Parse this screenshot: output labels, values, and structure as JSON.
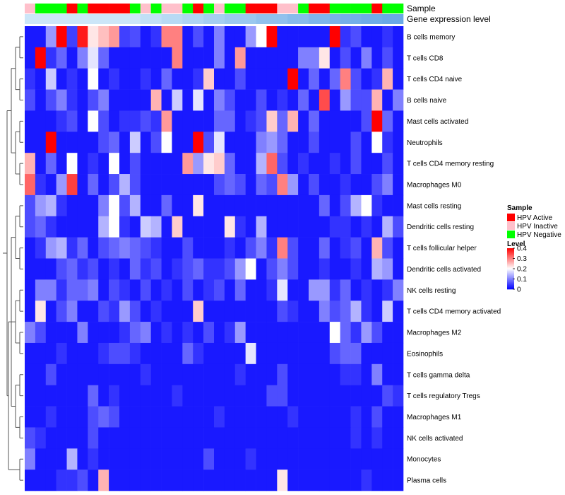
{
  "chart_data": {
    "type": "heatmap",
    "annotation_tracks": [
      "Sample",
      "Gene expression level"
    ],
    "rows": [
      "B cells memory",
      "T cells CD8",
      "T cells CD4 naive",
      "B cells naive",
      "Mast cells activated",
      "Neutrophils",
      "T cells CD4 memory resting",
      "Macrophages M0",
      "Mast cells resting",
      "Dendritic cells resting",
      "T cells follicular helper",
      "Dendritic cells activated",
      "NK cells resting",
      "T cells CD4 memory activated",
      "Macrophages M2",
      "Eosinophils",
      "T cells gamma delta",
      "T cells regulatory  Tregs",
      "Macrophages M1",
      "NK cells activated",
      "Monocytes",
      "Plasma cells"
    ],
    "sample_groups": [
      "Inactive",
      "Negative",
      "Negative",
      "Negative",
      "Active",
      "Negative",
      "Active",
      "Active",
      "Active",
      "Active",
      "Negative",
      "Inactive",
      "Negative",
      "Inactive",
      "Inactive",
      "Negative",
      "Active",
      "Negative",
      "Inactive",
      "Negative",
      "Negative",
      "Active",
      "Active",
      "Active",
      "Inactive",
      "Inactive",
      "Negative",
      "Active",
      "Active",
      "Negative",
      "Negative",
      "Negative",
      "Negative",
      "Active",
      "Negative",
      "Negative"
    ],
    "gene_expression_level": [
      0,
      0,
      0,
      0,
      0,
      0,
      0,
      0,
      0,
      0,
      0,
      0.1,
      0.1,
      0.2,
      0.2,
      0.3,
      0.3,
      0.4,
      0.4,
      0.5,
      0.5,
      0.5,
      0.6,
      0.6,
      0.6,
      0.7,
      0.7,
      0.8,
      0.8,
      0.85,
      0.9,
      0.9,
      0.95,
      0.95,
      1,
      1
    ],
    "values": [
      [
        0.02,
        0.02,
        0.12,
        0.4,
        0.05,
        0.38,
        0.22,
        0.25,
        0.28,
        0.05,
        0.06,
        0.02,
        0.04,
        0.3,
        0.3,
        0.02,
        0.06,
        0.02,
        0.1,
        0.02,
        0.02,
        0.12,
        0.2,
        0.4,
        0.02,
        0.02,
        0.02,
        0.02,
        0.02,
        0.4,
        0.04,
        0.06,
        0.02,
        0.02,
        0.04,
        0.02
      ],
      [
        0.02,
        0.4,
        0.04,
        0.08,
        0.02,
        0.1,
        0.18,
        0.08,
        0.02,
        0.02,
        0.02,
        0.02,
        0.02,
        0.02,
        0.3,
        0.02,
        0.02,
        0.02,
        0.1,
        0.02,
        0.28,
        0.02,
        0.02,
        0.02,
        0.02,
        0.02,
        0.1,
        0.1,
        0.22,
        0.02,
        0.06,
        0.02,
        0.1,
        0.02,
        0.06,
        0.02
      ],
      [
        0.04,
        0.02,
        0.16,
        0.02,
        0.04,
        0.02,
        0.2,
        0.02,
        0.04,
        0.02,
        0.02,
        0.04,
        0.02,
        0.08,
        0.02,
        0.02,
        0.04,
        0.24,
        0.02,
        0.02,
        0.06,
        0.02,
        0.02,
        0.02,
        0.02,
        0.4,
        0.02,
        0.08,
        0.02,
        0.08,
        0.3,
        0.06,
        0.02,
        0.04,
        0.26,
        0.02
      ],
      [
        0.06,
        0.02,
        0.06,
        0.1,
        0.04,
        0.02,
        0.06,
        0.1,
        0.02,
        0.02,
        0.02,
        0.02,
        0.26,
        0.02,
        0.16,
        0.02,
        0.18,
        0.02,
        0.1,
        0.06,
        0.02,
        0.02,
        0.06,
        0.02,
        0.04,
        0.02,
        0.08,
        0.02,
        0.34,
        0.02,
        0.12,
        0.06,
        0.06,
        0.26,
        0.02,
        0.1
      ],
      [
        0.02,
        0.02,
        0.02,
        0.04,
        0.06,
        0.02,
        0.2,
        0.06,
        0.02,
        0.04,
        0.04,
        0.06,
        0.04,
        0.28,
        0.02,
        0.02,
        0.02,
        0.02,
        0.08,
        0.08,
        0.02,
        0.04,
        0.06,
        0.24,
        0.08,
        0.26,
        0.02,
        0.08,
        0.02,
        0.02,
        0.02,
        0.02,
        0.06,
        0.4,
        0.08,
        0.02
      ],
      [
        0.02,
        0.02,
        0.4,
        0.02,
        0.02,
        0.02,
        0.02,
        0.06,
        0.08,
        0.02,
        0.16,
        0.02,
        0.06,
        0.2,
        0.02,
        0.02,
        0.4,
        0.06,
        0.18,
        0.02,
        0.02,
        0.02,
        0.1,
        0.12,
        0.08,
        0.02,
        0.02,
        0.06,
        0.02,
        0.02,
        0.02,
        0.06,
        0.02,
        0.2,
        0.04,
        0.02
      ],
      [
        0.26,
        0.02,
        0.08,
        0.02,
        0.2,
        0.02,
        0.04,
        0.02,
        0.2,
        0.02,
        0.06,
        0.02,
        0.02,
        0.02,
        0.02,
        0.28,
        0.12,
        0.22,
        0.24,
        0.08,
        0.02,
        0.02,
        0.14,
        0.32,
        0.06,
        0.02,
        0.04,
        0.02,
        0.02,
        0.04,
        0.02,
        0.06,
        0.02,
        0.02,
        0.06,
        0.02
      ],
      [
        0.32,
        0.04,
        0.02,
        0.12,
        0.35,
        0.02,
        0.08,
        0.02,
        0.06,
        0.14,
        0.06,
        0.02,
        0.02,
        0.02,
        0.02,
        0.02,
        0.02,
        0.02,
        0.06,
        0.08,
        0.06,
        0.02,
        0.08,
        0.06,
        0.3,
        0.12,
        0.02,
        0.06,
        0.02,
        0.02,
        0.04,
        0.02,
        0.02,
        0.06,
        0.1,
        0.02
      ],
      [
        0.06,
        0.12,
        0.14,
        0.04,
        0.02,
        0.02,
        0.02,
        0.1,
        0.2,
        0.06,
        0.14,
        0.02,
        0.02,
        0.08,
        0.02,
        0.02,
        0.22,
        0.02,
        0.02,
        0.02,
        0.02,
        0.02,
        0.02,
        0.02,
        0.02,
        0.02,
        0.02,
        0.02,
        0.08,
        0.02,
        0.06,
        0.14,
        0.2,
        0.04,
        0.02,
        0.02
      ],
      [
        0.06,
        0.08,
        0.04,
        0.02,
        0.02,
        0.02,
        0.02,
        0.14,
        0.2,
        0.04,
        0.02,
        0.16,
        0.14,
        0.02,
        0.24,
        0.02,
        0.02,
        0.02,
        0.02,
        0.22,
        0.04,
        0.02,
        0.14,
        0.02,
        0.02,
        0.02,
        0.02,
        0.02,
        0.02,
        0.04,
        0.04,
        0.02,
        0.04,
        0.02,
        0.14,
        0.06
      ],
      [
        0.02,
        0.04,
        0.12,
        0.14,
        0.04,
        0.08,
        0.02,
        0.06,
        0.08,
        0.1,
        0.08,
        0.06,
        0.04,
        0.02,
        0.02,
        0.06,
        0.02,
        0.02,
        0.02,
        0.04,
        0.02,
        0.06,
        0.1,
        0.04,
        0.3,
        0.06,
        0.02,
        0.02,
        0.08,
        0.02,
        0.04,
        0.06,
        0.02,
        0.26,
        0.06,
        0.02
      ],
      [
        0.02,
        0.02,
        0.02,
        0.06,
        0.08,
        0.04,
        0.06,
        0.02,
        0.04,
        0.02,
        0.08,
        0.04,
        0.06,
        0.02,
        0.04,
        0.06,
        0.08,
        0.04,
        0.04,
        0.06,
        0.12,
        0.2,
        0.02,
        0.06,
        0.1,
        0.06,
        0.02,
        0.02,
        0.04,
        0.02,
        0.02,
        0.04,
        0.02,
        0.14,
        0.12,
        0.02
      ],
      [
        0.02,
        0.1,
        0.1,
        0.04,
        0.08,
        0.08,
        0.1,
        0.02,
        0.06,
        0.04,
        0.02,
        0.06,
        0.02,
        0.04,
        0.02,
        0.06,
        0.02,
        0.04,
        0.06,
        0.02,
        0.08,
        0.02,
        0.02,
        0.04,
        0.18,
        0.02,
        0.02,
        0.12,
        0.12,
        0.04,
        0.08,
        0.02,
        0.04,
        0.02,
        0.04,
        0.1
      ],
      [
        0.02,
        0.22,
        0.02,
        0.06,
        0.1,
        0.02,
        0.02,
        0.06,
        0.04,
        0.12,
        0.06,
        0.02,
        0.04,
        0.02,
        0.02,
        0.02,
        0.24,
        0.02,
        0.02,
        0.02,
        0.02,
        0.02,
        0.02,
        0.02,
        0.06,
        0.04,
        0.02,
        0.02,
        0.1,
        0.06,
        0.08,
        0.14,
        0.04,
        0.02,
        0.16,
        0.02
      ],
      [
        0.1,
        0.06,
        0.02,
        0.02,
        0.02,
        0.1,
        0.02,
        0.02,
        0.02,
        0.04,
        0.08,
        0.1,
        0.02,
        0.04,
        0.02,
        0.04,
        0.02,
        0.06,
        0.02,
        0.04,
        0.12,
        0.02,
        0.02,
        0.02,
        0.02,
        0.02,
        0.02,
        0.02,
        0.02,
        0.2,
        0.08,
        0.04,
        0.12,
        0.06,
        0.02,
        0.02
      ],
      [
        0.02,
        0.02,
        0.02,
        0.04,
        0.02,
        0.02,
        0.02,
        0.04,
        0.06,
        0.06,
        0.04,
        0.02,
        0.02,
        0.02,
        0.02,
        0.08,
        0.04,
        0.02,
        0.02,
        0.02,
        0.02,
        0.18,
        0.02,
        0.02,
        0.02,
        0.02,
        0.02,
        0.02,
        0.02,
        0.06,
        0.08,
        0.08,
        0.02,
        0.02,
        0.02,
        0.02
      ],
      [
        0.02,
        0.02,
        0.06,
        0.02,
        0.02,
        0.02,
        0.02,
        0.02,
        0.02,
        0.02,
        0.02,
        0.04,
        0.02,
        0.02,
        0.02,
        0.02,
        0.02,
        0.02,
        0.02,
        0.02,
        0.04,
        0.02,
        0.02,
        0.02,
        0.06,
        0.02,
        0.02,
        0.02,
        0.02,
        0.02,
        0.04,
        0.04,
        0.02,
        0.1,
        0.02,
        0.02
      ],
      [
        0.02,
        0.02,
        0.02,
        0.02,
        0.02,
        0.02,
        0.08,
        0.02,
        0.04,
        0.02,
        0.02,
        0.02,
        0.02,
        0.02,
        0.04,
        0.02,
        0.02,
        0.02,
        0.02,
        0.02,
        0.02,
        0.02,
        0.02,
        0.06,
        0.06,
        0.02,
        0.02,
        0.02,
        0.02,
        0.02,
        0.02,
        0.02,
        0.02,
        0.02,
        0.06,
        0.04
      ],
      [
        0.02,
        0.02,
        0.04,
        0.02,
        0.02,
        0.02,
        0.06,
        0.08,
        0.06,
        0.02,
        0.02,
        0.02,
        0.02,
        0.02,
        0.02,
        0.02,
        0.02,
        0.02,
        0.04,
        0.02,
        0.02,
        0.02,
        0.02,
        0.02,
        0.02,
        0.04,
        0.02,
        0.02,
        0.02,
        0.02,
        0.02,
        0.04,
        0.02,
        0.06,
        0.02,
        0.02
      ],
      [
        0.06,
        0.04,
        0.02,
        0.02,
        0.02,
        0.02,
        0.06,
        0.02,
        0.02,
        0.02,
        0.02,
        0.02,
        0.02,
        0.02,
        0.02,
        0.02,
        0.02,
        0.02,
        0.02,
        0.02,
        0.02,
        0.02,
        0.02,
        0.02,
        0.02,
        0.02,
        0.02,
        0.02,
        0.02,
        0.02,
        0.02,
        0.04,
        0.02,
        0.04,
        0.02,
        0.02
      ],
      [
        0.1,
        0.02,
        0.02,
        0.02,
        0.14,
        0.02,
        0.04,
        0.02,
        0.02,
        0.02,
        0.02,
        0.02,
        0.02,
        0.02,
        0.02,
        0.02,
        0.02,
        0.06,
        0.02,
        0.02,
        0.02,
        0.04,
        0.02,
        0.02,
        0.02,
        0.02,
        0.02,
        0.02,
        0.02,
        0.02,
        0.02,
        0.02,
        0.02,
        0.02,
        0.02,
        0.02
      ],
      [
        0.02,
        0.02,
        0.02,
        0.04,
        0.04,
        0.06,
        0.02,
        0.26,
        0.02,
        0.02,
        0.02,
        0.02,
        0.02,
        0.02,
        0.02,
        0.02,
        0.02,
        0.02,
        0.02,
        0.02,
        0.02,
        0.02,
        0.02,
        0.02,
        0.22,
        0.02,
        0.02,
        0.02,
        0.02,
        0.02,
        0.02,
        0.02,
        0.04,
        0.02,
        0.02,
        0.02
      ]
    ],
    "legend_sample": {
      "title": "Sample",
      "items": [
        {
          "key": "Active",
          "label": "HPV Active",
          "color": "#ff0000"
        },
        {
          "key": "Inactive",
          "label": "HPV Inactive",
          "color": "#ffc0cb"
        },
        {
          "key": "Negative",
          "label": "HPV Negative",
          "color": "#00ff00"
        }
      ]
    },
    "legend_level": {
      "title": "Level",
      "ticks": [
        "0.4",
        "0.3",
        "0.2",
        "0.1",
        "0"
      ],
      "tick_values": [
        0.4,
        0.3,
        0.2,
        0.1,
        0
      ],
      "range": [
        0,
        0.4
      ],
      "colors": {
        "low": "#0000ff",
        "mid": "#ffffff",
        "high": "#ff0000"
      }
    },
    "expression_colors": {
      "low": "#cce6f8",
      "high": "#6aa9e6"
    },
    "dendrogram": "left"
  }
}
